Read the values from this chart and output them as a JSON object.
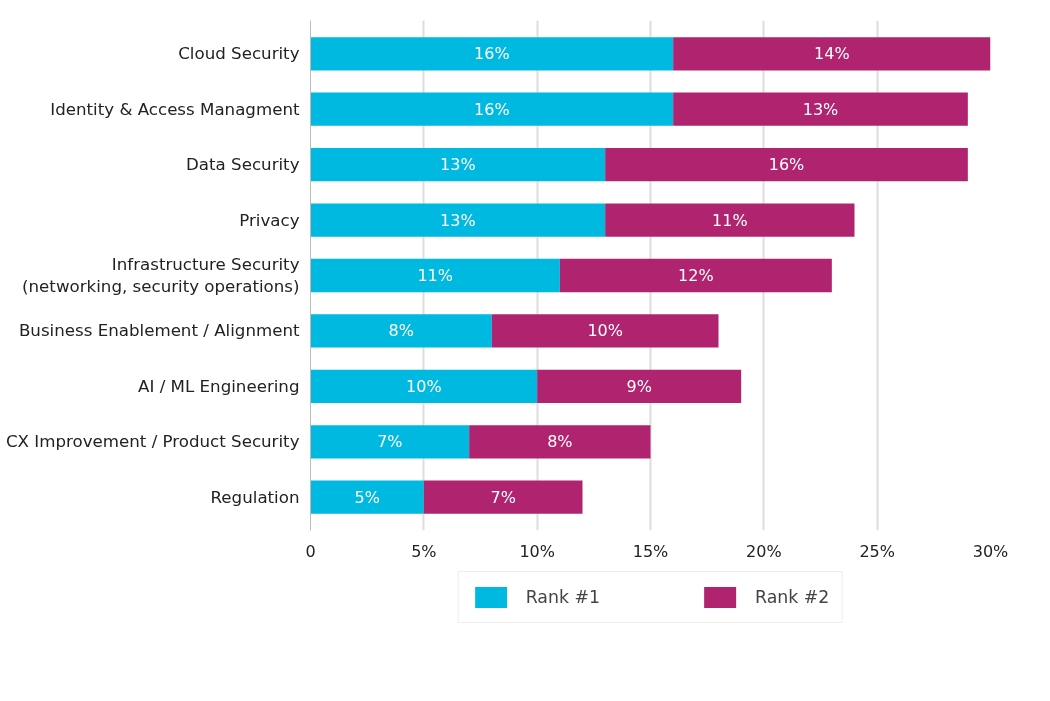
{
  "chart_data": {
    "type": "bar",
    "orientation": "horizontal",
    "stacked": true,
    "categories": [
      "Cloud Security",
      "Identity & Access Managment",
      "Data Security",
      "Privacy",
      "Infrastructure Security\n(networking, security operations)",
      "Business Enablement / Alignment",
      "AI / ML Engineering",
      "CX Improvement / Product Security",
      "Regulation"
    ],
    "series": [
      {
        "name": "Rank #1",
        "color": "#00b9e0",
        "values": [
          16,
          16,
          13,
          13,
          11,
          8,
          10,
          7,
          5
        ],
        "value_labels": [
          "16%",
          "16%",
          "13%",
          "13%",
          "11%",
          "8%",
          "10%",
          "7%",
          "5%"
        ]
      },
      {
        "name": "Rank #2",
        "color": "#b0236f",
        "values": [
          14,
          13,
          16,
          11,
          12,
          10,
          9,
          8,
          7
        ],
        "value_labels": [
          "14%",
          "13%",
          "16%",
          "11%",
          "12%",
          "10%",
          "9%",
          "8%",
          "7%"
        ]
      }
    ],
    "xlim": [
      0,
      30
    ],
    "xticks": [
      {
        "value": 0,
        "label": "0"
      },
      {
        "value": 5,
        "label": "5%"
      },
      {
        "value": 10,
        "label": "10%"
      },
      {
        "value": 15,
        "label": "15%"
      },
      {
        "value": 20,
        "label": "20%"
      },
      {
        "value": 25,
        "label": "25%"
      },
      {
        "value": 30,
        "label": "30%"
      }
    ],
    "grid": "x",
    "legend": "bottom"
  }
}
